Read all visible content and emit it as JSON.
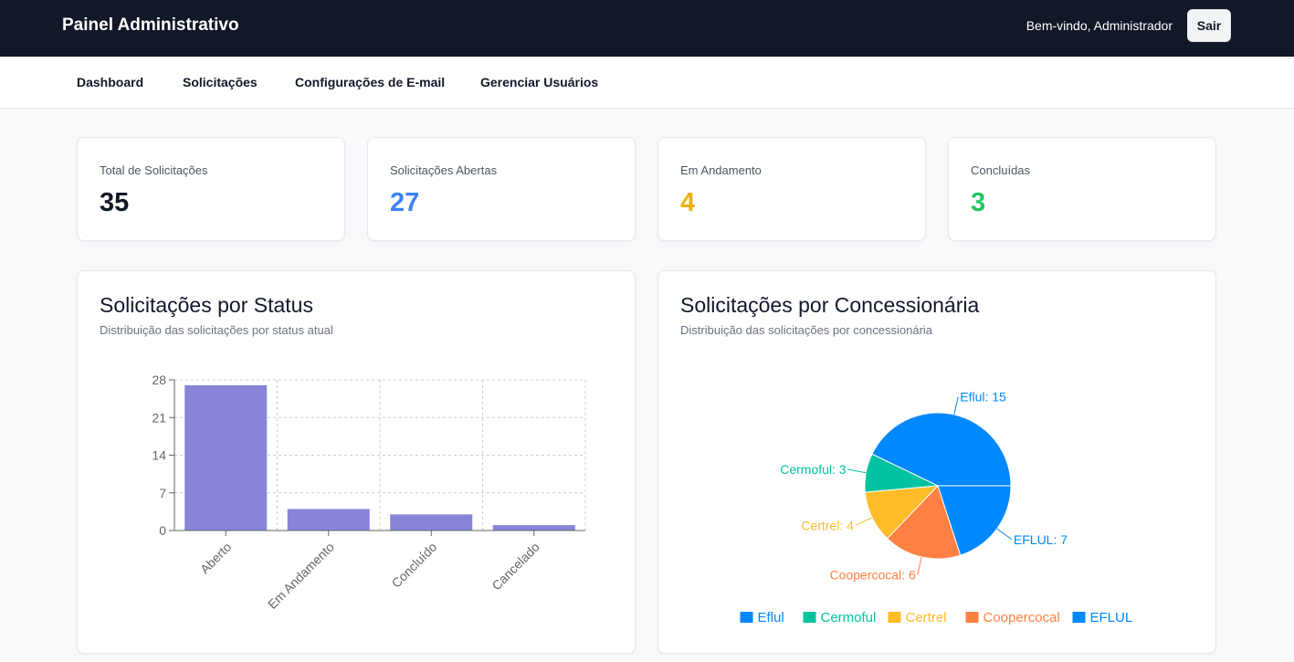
{
  "header": {
    "title": "Painel Administrativo",
    "welcome": "Bem-vindo, Administrador",
    "logout_label": "Sair"
  },
  "nav": {
    "dashboard": "Dashboard",
    "requests": "Solicitações",
    "email_settings": "Configurações de E-mail",
    "manage_users": "Gerenciar Usuários"
  },
  "stats": {
    "total": {
      "label": "Total de Solicitações",
      "value": "35",
      "color": "#111827"
    },
    "open": {
      "label": "Solicitações Abertas",
      "value": "27",
      "color": "#3b82f6"
    },
    "in_progress": {
      "label": "Em Andamento",
      "value": "4",
      "color": "#eab308"
    },
    "done": {
      "label": "Concluídas",
      "value": "3",
      "color": "#22c55e"
    }
  },
  "status_chart": {
    "title": "Solicitações por Status",
    "subtitle": "Distribuição das solicitações por status atual"
  },
  "concessionaire_chart": {
    "title": "Solicitações por Concessionária",
    "subtitle": "Distribuição das solicitações por concessionária"
  },
  "chart_data": [
    {
      "type": "bar",
      "categories": [
        "Aberto",
        "Em Andamento",
        "Concluído",
        "Cancelado"
      ],
      "values": [
        27,
        4,
        3,
        1
      ],
      "ylim": [
        0,
        28
      ],
      "yticks": [
        "0",
        "7",
        "14",
        "21",
        "28"
      ],
      "grid": true,
      "color": "#8884d8"
    },
    {
      "type": "pie",
      "labels": [
        "Eflul",
        "Cermoful",
        "Certrel",
        "Coopercocal",
        "EFLUL"
      ],
      "values": [
        15,
        3,
        4,
        6,
        7
      ],
      "slice_labels": [
        "Eflul: 15",
        "Cermoful: 3",
        "Certrel: 4",
        "Coopercocal: 6",
        "EFLUL: 7"
      ],
      "colors": [
        "#0088fe",
        "#00c49f",
        "#ffbb28",
        "#ff8042",
        "#0088fe"
      ],
      "legend": "bottom"
    }
  ]
}
